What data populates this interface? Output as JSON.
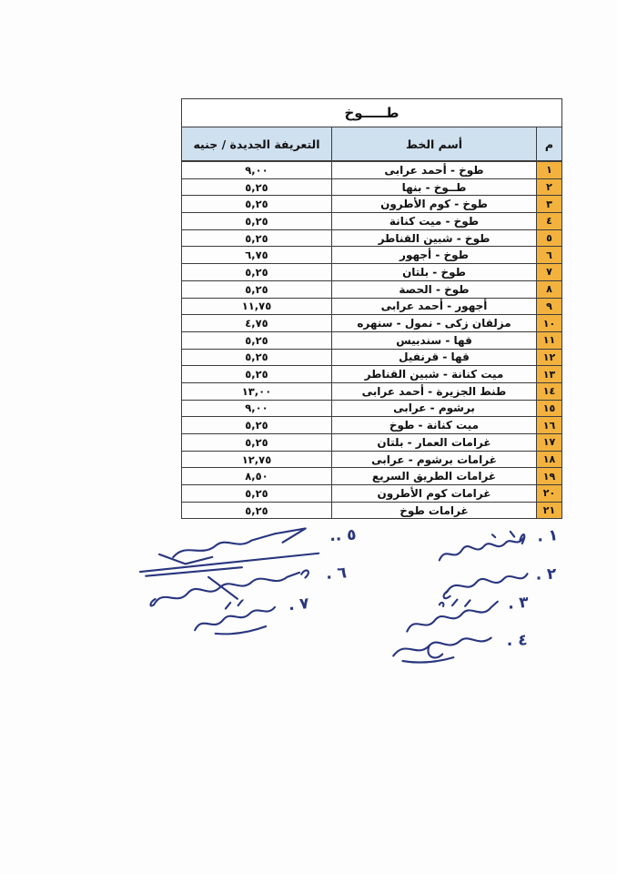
{
  "colors": {
    "header_bg": "#cfe0ef",
    "num_bg": "#f2b23d",
    "ink": "#28357e",
    "border": "#3c3c3c",
    "page_bg": "#fdfdfd"
  },
  "table": {
    "title": "طـــــوخ",
    "headers": {
      "num": "م",
      "line": "أسم الخط",
      "tariff": "التعريفة الجديدة / جنيه"
    },
    "rows": [
      {
        "num": "١",
        "line": "طوخ - أحمد عرابى",
        "tariff": "٩,٠٠"
      },
      {
        "num": "٢",
        "line": "طــوخ - بنها",
        "tariff": "٥,٢٥"
      },
      {
        "num": "٣",
        "line": "طوخ - كوم الأطرون",
        "tariff": "٥,٢٥"
      },
      {
        "num": "٤",
        "line": "طوخ - ميت كنانة",
        "tariff": "٥,٢٥"
      },
      {
        "num": "٥",
        "line": "طوخ - شبين القناطر",
        "tariff": "٥,٢٥"
      },
      {
        "num": "٦",
        "line": "طوخ - أجهور",
        "tariff": "٦,٧٥"
      },
      {
        "num": "٧",
        "line": "طوخ - بلتان",
        "tariff": "٥,٢٥"
      },
      {
        "num": "٨",
        "line": "طوخ - الحصة",
        "tariff": "٥,٢٥"
      },
      {
        "num": "٩",
        "line": "أجهور - أحمد عرابى",
        "tariff": "١١,٧٥"
      },
      {
        "num": "١٠",
        "line": "مزلقان زكى - نمول - سنهره",
        "tariff": "٤,٧٥"
      },
      {
        "num": "١١",
        "line": "قها - سندبيس",
        "tariff": "٥,٢٥"
      },
      {
        "num": "١٢",
        "line": "قها - قرنفيل",
        "tariff": "٥,٢٥"
      },
      {
        "num": "١٣",
        "line": "ميت كنانة - شبين القناطر",
        "tariff": "٥,٢٥"
      },
      {
        "num": "١٤",
        "line": "طنط الجزيرة - أحمد عرابى",
        "tariff": "١٣,٠٠"
      },
      {
        "num": "١٥",
        "line": "برشوم - عرابى",
        "tariff": "٩,٠٠"
      },
      {
        "num": "١٦",
        "line": "ميت كنانة - طوخ",
        "tariff": "٥,٢٥"
      },
      {
        "num": "١٧",
        "line": "غرامات العمار - بلتان",
        "tariff": "٥,٢٥"
      },
      {
        "num": "١٨",
        "line": "غرامات برشوم - عرابى",
        "tariff": "١٢,٧٥"
      },
      {
        "num": "١٩",
        "line": "غرامات الطريق السريع",
        "tariff": "٨,٥٠"
      },
      {
        "num": "٢٠",
        "line": "غرامات كوم الأطرون",
        "tariff": "٥,٢٥"
      },
      {
        "num": "٢١",
        "line": "غرامات طوخ",
        "tariff": "٥,٢٥"
      }
    ]
  },
  "signatures": {
    "right": [
      {
        "label": "١ ."
      },
      {
        "label": "٢ ."
      },
      {
        "label": "٣ ."
      },
      {
        "label": "٤ ."
      }
    ],
    "left": [
      {
        "label": "٥ .."
      },
      {
        "label": "٦ ."
      },
      {
        "label": "٧ ."
      }
    ]
  }
}
